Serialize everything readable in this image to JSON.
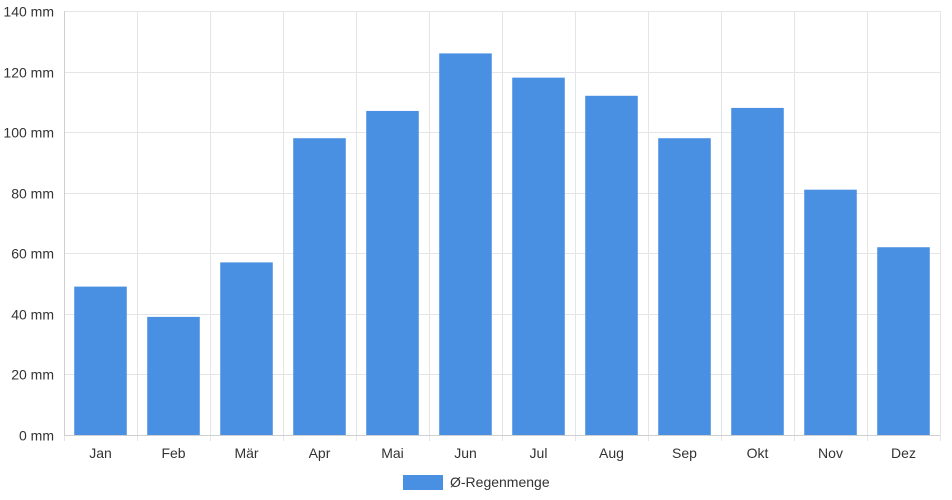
{
  "chart_data": {
    "type": "bar",
    "categories": [
      "Jan",
      "Feb",
      "Mär",
      "Apr",
      "Mai",
      "Jun",
      "Jul",
      "Aug",
      "Sep",
      "Okt",
      "Nov",
      "Dez"
    ],
    "series": [
      {
        "name": "Ø-Regenmenge",
        "color": "#4a90e2",
        "values": [
          49,
          39,
          57,
          98,
          107,
          126,
          118,
          112,
          98,
          108,
          81,
          62
        ]
      }
    ],
    "ylim": [
      0,
      140
    ],
    "yticks": [
      0,
      20,
      40,
      60,
      80,
      100,
      120,
      140
    ],
    "y_unit": "mm",
    "grid": true,
    "legend_position": "bottom-center"
  }
}
